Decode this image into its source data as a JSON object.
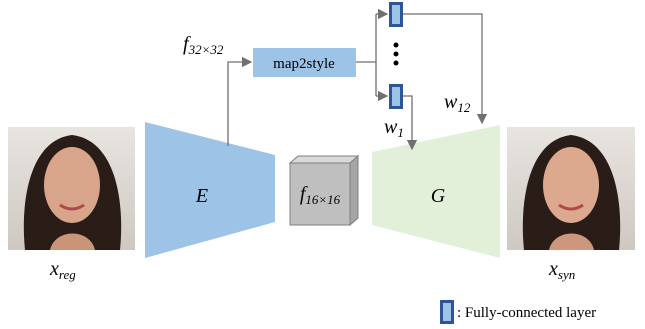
{
  "labels": {
    "f32": {
      "base": "f",
      "sub": "32×32"
    },
    "map2style": "map2style",
    "w1": {
      "base": "w",
      "sub": "1"
    },
    "w12": {
      "base": "w",
      "sub": "12"
    },
    "encoder": "E",
    "generator": "G",
    "f16": {
      "base": "f",
      "sub": "16×16"
    },
    "x_reg": {
      "base": "x",
      "sub": "reg"
    },
    "x_syn": {
      "base": "x",
      "sub": "syn"
    }
  },
  "legend": ": Fully-connected layer"
}
